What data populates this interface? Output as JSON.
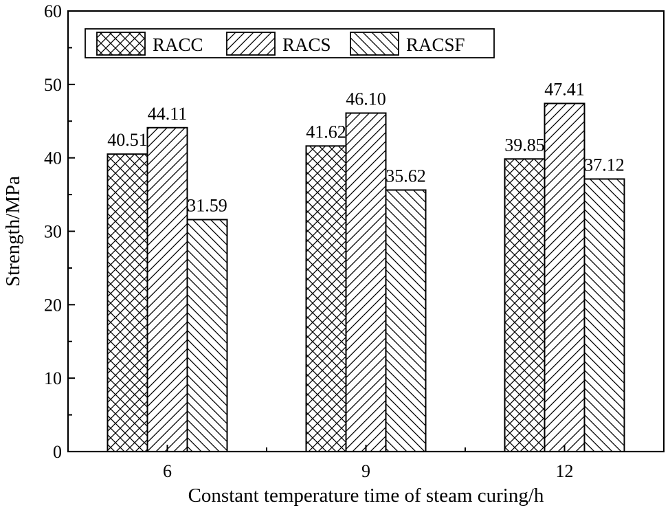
{
  "chart_data": {
    "type": "bar",
    "title": "",
    "xlabel": "Constant temperature time of steam curing/h",
    "ylabel": "Strength/MPa",
    "categories": [
      "6",
      "9",
      "12"
    ],
    "series": [
      {
        "name": "RACC",
        "values": [
          40.51,
          41.62,
          39.85
        ],
        "labels": [
          "40.51",
          "41.62",
          "39.85"
        ],
        "pattern": "crosshatch"
      },
      {
        "name": "RACS",
        "values": [
          44.11,
          46.1,
          47.41
        ],
        "labels": [
          "44.11",
          "46.10",
          "47.41"
        ],
        "pattern": "forward-diagonal"
      },
      {
        "name": "RACSF",
        "values": [
          31.59,
          35.62,
          37.12
        ],
        "labels": [
          "31.59",
          "35.62",
          "37.12"
        ],
        "pattern": "backward-diagonal"
      }
    ],
    "ylim": [
      0,
      60
    ],
    "yticks": [
      "0",
      "10",
      "20",
      "30",
      "40",
      "50",
      "60"
    ],
    "grid": false,
    "legend_position": "top-left",
    "colors": {
      "bar_fill": "#ffffff",
      "pattern": "#000000",
      "axis": "#000000"
    }
  }
}
